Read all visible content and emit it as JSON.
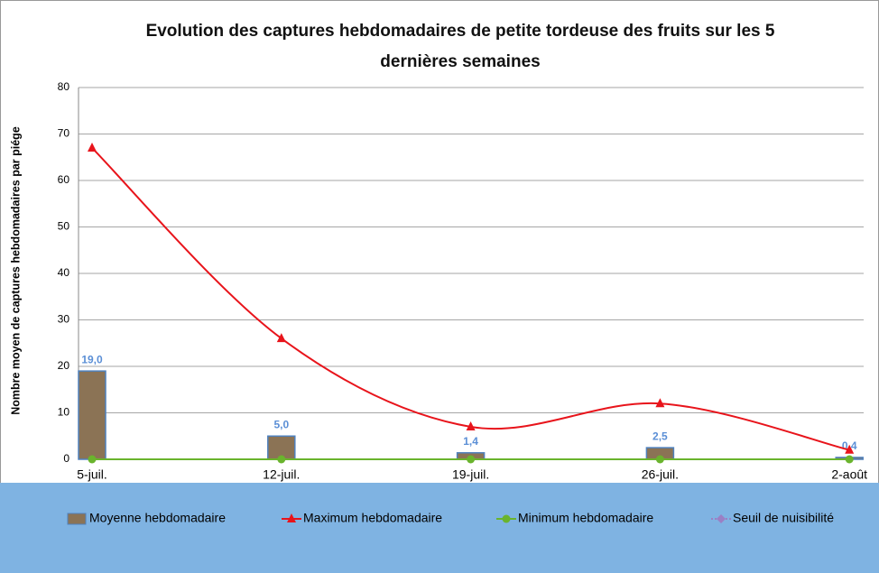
{
  "chart_data": {
    "type": "bar-line",
    "title": "Evolution des captures hebdomadaires de petite tordeuse des fruits sur les 5 dernières semaines",
    "ylabel": "Nombre moyen de captures hebdomadaires par piége",
    "categories": [
      "5-juil.",
      "12-juil.",
      "19-juil.",
      "26-juil.",
      "2-août"
    ],
    "series": [
      {
        "name": "Moyenne hebdomadaire",
        "type": "bar",
        "color": "#8b7355",
        "edgecolor": "#4f81bd",
        "values": [
          19.0,
          5.0,
          1.4,
          2.5,
          0.4
        ],
        "value_labels": [
          "19,0",
          "5,0",
          "1,4",
          "2,5",
          "0,4"
        ]
      },
      {
        "name": "Maximum hebdomadaire",
        "type": "line",
        "marker": "triangle",
        "smooth": true,
        "color": "#e8141b",
        "values": [
          67,
          26,
          7,
          12,
          2
        ]
      },
      {
        "name": "Minimum hebdomadaire",
        "type": "line",
        "marker": "circle",
        "color": "#6ab42d",
        "values": [
          0,
          0,
          0,
          0,
          0
        ]
      },
      {
        "name": "Seuil de nuisibilité",
        "type": "line",
        "marker": "diamond",
        "color": "#9b7fc4",
        "values": [
          null,
          null,
          null,
          null,
          null
        ]
      }
    ],
    "ylim": [
      0,
      80
    ],
    "yticks": [
      0,
      10,
      20,
      30,
      40,
      50,
      60,
      70,
      80
    ],
    "grid": true,
    "legend": "bottom"
  }
}
